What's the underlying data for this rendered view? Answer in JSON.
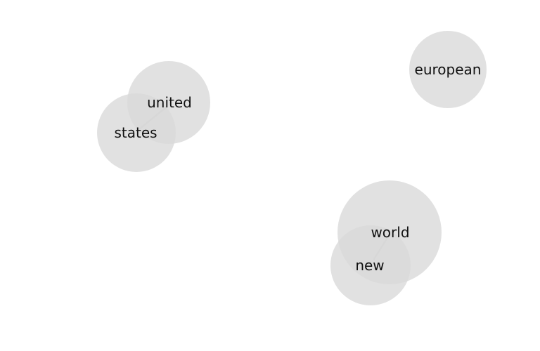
{
  "diagram": {
    "nodes": [
      {
        "id": "united",
        "label": "united"
      },
      {
        "id": "states",
        "label": "states"
      },
      {
        "id": "european",
        "label": "european"
      },
      {
        "id": "world",
        "label": "world"
      },
      {
        "id": "new",
        "label": "new"
      }
    ],
    "edges": [
      {
        "from": "united",
        "to": "states"
      },
      {
        "from": "world",
        "to": "new"
      }
    ],
    "colors": {
      "node_fill": "#d9d9d9",
      "edge": "#9a9a9a",
      "text": "#111111"
    }
  }
}
